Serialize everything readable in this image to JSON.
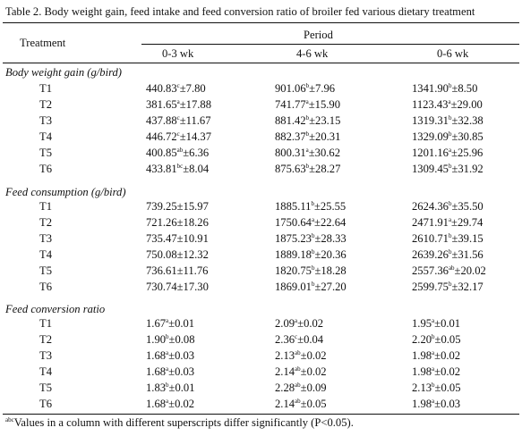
{
  "caption": "Table 2.  Body weight gain, feed intake and feed conversion ratio of broiler fed various dietary treatment",
  "header": {
    "treatment_label": "Treatment",
    "period_label": "Period",
    "columns": [
      "0-3 wk",
      "4-6 wk",
      "0-6 wk"
    ]
  },
  "sections": [
    {
      "title": "Body weight gain (g/bird)",
      "rows": [
        {
          "treatment": "T1",
          "cells": [
            {
              "v": "440.83",
              "s": "c",
              "e": "±7.80"
            },
            {
              "v": "901.06",
              "s": "b",
              "e": "±7.96"
            },
            {
              "v": "1341.90",
              "s": "b",
              "e": "±8.50"
            }
          ]
        },
        {
          "treatment": "T2",
          "cells": [
            {
              "v": "381.65",
              "s": "a",
              "e": "±17.88"
            },
            {
              "v": "741.77",
              "s": "a",
              "e": "±15.90"
            },
            {
              "v": "1123.43",
              "s": "a",
              "e": "±29.00"
            }
          ]
        },
        {
          "treatment": "T3",
          "cells": [
            {
              "v": "437.88",
              "s": "c",
              "e": "±11.67"
            },
            {
              "v": "881.42",
              "s": "b",
              "e": "±23.15"
            },
            {
              "v": "1319.31",
              "s": "b",
              "e": "±32.38"
            }
          ]
        },
        {
          "treatment": "T4",
          "cells": [
            {
              "v": "446.72",
              "s": "c",
              "e": "±14.37"
            },
            {
              "v": "882.37",
              "s": "b",
              "e": "±20.31"
            },
            {
              "v": "1329.09",
              "s": "b",
              "e": "±30.85"
            }
          ]
        },
        {
          "treatment": "T5",
          "cells": [
            {
              "v": "400.85",
              "s": "ab",
              "e": "±6.36"
            },
            {
              "v": "800.31",
              "s": "a",
              "e": "±30.62"
            },
            {
              "v": "1201.16",
              "s": "a",
              "e": "±25.96"
            }
          ]
        },
        {
          "treatment": "T6",
          "cells": [
            {
              "v": "433.81",
              "s": "bc",
              "e": "±8.04"
            },
            {
              "v": "875.63",
              "s": "b",
              "e": "±28.27"
            },
            {
              "v": "1309.45",
              "s": "b",
              "e": "±31.92"
            }
          ]
        }
      ]
    },
    {
      "title": "Feed consumption (g/bird)",
      "rows": [
        {
          "treatment": "T1",
          "cells": [
            {
              "v": "739.25",
              "s": "",
              "e": "±15.97"
            },
            {
              "v": "1885.11",
              "s": "b",
              "e": "±25.55"
            },
            {
              "v": "2624.36",
              "b2": "",
              "s": "b",
              "e": "±35.50"
            }
          ]
        },
        {
          "treatment": "T2",
          "cells": [
            {
              "v": "721.26",
              "s": "",
              "e": "±18.26"
            },
            {
              "v": "1750.64",
              "s": "a",
              "e": "±22.64"
            },
            {
              "v": "2471.91",
              "s": "a",
              "e": "±29.74"
            }
          ]
        },
        {
          "treatment": "T3",
          "cells": [
            {
              "v": "735.47",
              "s": "",
              "e": "±10.91"
            },
            {
              "v": "1875.23",
              "s": "b",
              "e": "±28.33"
            },
            {
              "v": "2610.71",
              "s": "b",
              "e": "±39.15"
            }
          ]
        },
        {
          "treatment": "T4",
          "cells": [
            {
              "v": "750.08",
              "s": "",
              "e": "±12.32"
            },
            {
              "v": "1889.18",
              "s": "b",
              "e": "±20.36"
            },
            {
              "v": "2639.26",
              "s": "b",
              "e": "±31.56"
            }
          ]
        },
        {
          "treatment": "T5",
          "cells": [
            {
              "v": "736.61",
              "s": "",
              "e": "±11.76"
            },
            {
              "v": "1820.75",
              "s": "b",
              "e": "±18.28"
            },
            {
              "v": "2557.36",
              "s": "ab",
              "e": "±20.02"
            }
          ]
        },
        {
          "treatment": "T6",
          "cells": [
            {
              "v": "730.74",
              "s": "",
              "e": "±17.30"
            },
            {
              "v": "1869.01",
              "s": "b",
              "e": "±27.20"
            },
            {
              "v": "2599.75",
              "s": "b",
              "e": "±32.17"
            }
          ]
        }
      ]
    },
    {
      "title": "Feed conversion ratio",
      "rows": [
        {
          "treatment": "T1",
          "cells": [
            {
              "v": "1.67",
              "s": "a",
              "e": "±0.01"
            },
            {
              "v": "2.09",
              "s": "a",
              "e": "±0.02"
            },
            {
              "v": "1.95",
              "s": "a",
              "e": "±0.01"
            }
          ]
        },
        {
          "treatment": "T2",
          "cells": [
            {
              "v": "1.90",
              "s": "b",
              "e": "±0.08"
            },
            {
              "v": "2.36",
              "s": "c",
              "e": "±0.04"
            },
            {
              "v": "2.20",
              "s": "b",
              "e": "±0.05"
            }
          ]
        },
        {
          "treatment": "T3",
          "cells": [
            {
              "v": "1.68",
              "s": "a",
              "e": "±0.03"
            },
            {
              "v": "2.13",
              "s": "ab",
              "e": "±0.02"
            },
            {
              "v": "1.98",
              "s": "a",
              "e": "±0.02"
            }
          ]
        },
        {
          "treatment": "T4",
          "cells": [
            {
              "v": "1.68",
              "s": "a",
              "e": "±0.03"
            },
            {
              "v": "2.14",
              "s": "ab",
              "e": "±0.02"
            },
            {
              "v": "1.98",
              "s": "a",
              "e": "±0.02"
            }
          ]
        },
        {
          "treatment": "T5",
          "cells": [
            {
              "v": "1.83",
              "s": "b",
              "e": "±0.01"
            },
            {
              "v": "2.28",
              "s": "ab",
              "e": "±0.09"
            },
            {
              "v": "2.13",
              "s": "b",
              "e": "±0.05"
            }
          ]
        },
        {
          "treatment": "T6",
          "cells": [
            {
              "v": "1.68",
              "s": "a",
              "e": "±0.02"
            },
            {
              "v": "2.14",
              "s": "ab",
              "e": "±0.05"
            },
            {
              "v": "1.98",
              "s": "a",
              "e": "±0.03"
            }
          ]
        }
      ]
    }
  ],
  "footnote": {
    "superscripts": "abc",
    "text": "Values in a column with different superscripts differ significantly (P<0.05)."
  }
}
